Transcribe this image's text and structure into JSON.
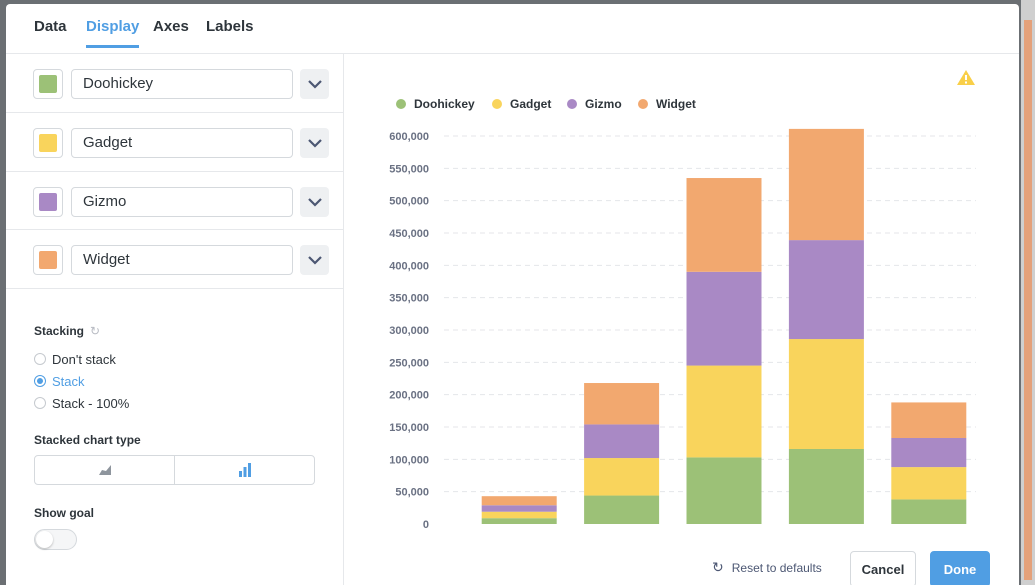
{
  "tabs": [
    {
      "label": "Data",
      "active": false
    },
    {
      "label": "Display",
      "active": true
    },
    {
      "label": "Axes",
      "active": false
    },
    {
      "label": "Labels",
      "active": false
    }
  ],
  "series_settings": [
    {
      "name": "Doohickey",
      "color": "#9CC177"
    },
    {
      "name": "Gadget",
      "color": "#F9D45C"
    },
    {
      "name": "Gizmo",
      "color": "#A989C5"
    },
    {
      "name": "Widget",
      "color": "#F2A86F"
    }
  ],
  "stacking": {
    "label": "Stacking",
    "options": [
      {
        "label": "Don't stack",
        "checked": false
      },
      {
        "label": "Stack",
        "checked": true
      },
      {
        "label": "Stack - 100%",
        "checked": false
      }
    ]
  },
  "stacked_chart_type": {
    "label": "Stacked chart type",
    "options": [
      "area-icon",
      "bar-icon"
    ],
    "selected": "bar-icon"
  },
  "show_goal": {
    "label": "Show goal",
    "enabled": false
  },
  "footer": {
    "reset_label": "Reset to defaults",
    "cancel_label": "Cancel",
    "done_label": "Done"
  },
  "colors": {
    "accent": "#509ee3",
    "warning": "#F9CF48"
  },
  "chart_data": {
    "type": "bar",
    "stacked": true,
    "categories": [
      "",
      "",
      "",
      "",
      ""
    ],
    "series": [
      {
        "name": "Doohickey",
        "color": "#9CC177",
        "values": [
          9000,
          44000,
          103000,
          116000,
          38000
        ]
      },
      {
        "name": "Gadget",
        "color": "#F9D45C",
        "values": [
          10000,
          58000,
          142000,
          170000,
          50000
        ]
      },
      {
        "name": "Gizmo",
        "color": "#A989C5",
        "values": [
          10000,
          52000,
          145000,
          153000,
          45000
        ]
      },
      {
        "name": "Widget",
        "color": "#F2A86F",
        "values": [
          14000,
          64000,
          145000,
          172000,
          55000
        ]
      }
    ],
    "ylim": [
      0,
      600000
    ],
    "yticks": [
      0,
      50000,
      100000,
      150000,
      200000,
      250000,
      300000,
      350000,
      400000,
      450000,
      500000,
      550000,
      600000
    ],
    "ytick_labels": [
      "0",
      "50,000",
      "100,000",
      "150,000",
      "200,000",
      "250,000",
      "300,000",
      "350,000",
      "400,000",
      "450,000",
      "500,000",
      "550,000",
      "600,000"
    ],
    "legend_position": "top-left",
    "grid": true
  }
}
